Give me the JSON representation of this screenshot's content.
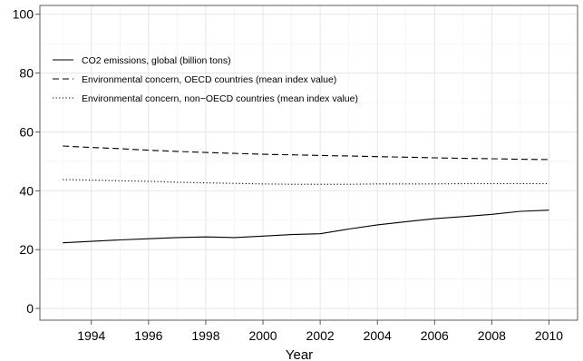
{
  "chart_data": {
    "type": "line",
    "title": "",
    "xlabel": "Year",
    "ylabel": "",
    "xlim": [
      1992.2,
      2011
    ],
    "ylim": [
      -4,
      103
    ],
    "xticks": [
      1994,
      1996,
      1998,
      2000,
      2002,
      2004,
      2006,
      2008,
      2010
    ],
    "yticks": [
      0,
      20,
      40,
      60,
      80,
      100
    ],
    "xtick_labels": [
      "1994",
      "1996",
      "1998",
      "2000",
      "2002",
      "2004",
      "2006",
      "2008",
      "2010"
    ],
    "ytick_labels": [
      "0",
      "20",
      "40",
      "60",
      "80",
      "100"
    ],
    "grid": true,
    "legend_position": "top-left",
    "x": [
      1993,
      1994,
      1995,
      1996,
      1997,
      1998,
      1999,
      2000,
      2001,
      2002,
      2003,
      2004,
      2005,
      2006,
      2007,
      2008,
      2009,
      2010
    ],
    "series": [
      {
        "name": "CO2 emissions, global (billion tons)",
        "line_style": "solid",
        "values": [
          22.3,
          22.8,
          23.3,
          23.7,
          24.1,
          24.3,
          24.1,
          24.6,
          25.1,
          25.4,
          27.0,
          28.4,
          29.5,
          30.5,
          31.2,
          32.0,
          33.0,
          33.4
        ]
      },
      {
        "name": "Environmental concern, OECD countries (mean index value)",
        "line_style": "dashed",
        "values": [
          55.2,
          54.7,
          54.3,
          53.8,
          53.4,
          53.0,
          52.7,
          52.4,
          52.2,
          52.0,
          51.8,
          51.6,
          51.4,
          51.2,
          51.0,
          50.9,
          50.7,
          50.6
        ]
      },
      {
        "name": "Environmental concern, non−OECD countries (mean index value)",
        "line_style": "dotted",
        "values": [
          43.8,
          43.6,
          43.4,
          43.2,
          42.9,
          42.7,
          42.5,
          42.3,
          42.2,
          42.2,
          42.2,
          42.3,
          42.3,
          42.3,
          42.4,
          42.4,
          42.4,
          42.4
        ]
      }
    ]
  }
}
